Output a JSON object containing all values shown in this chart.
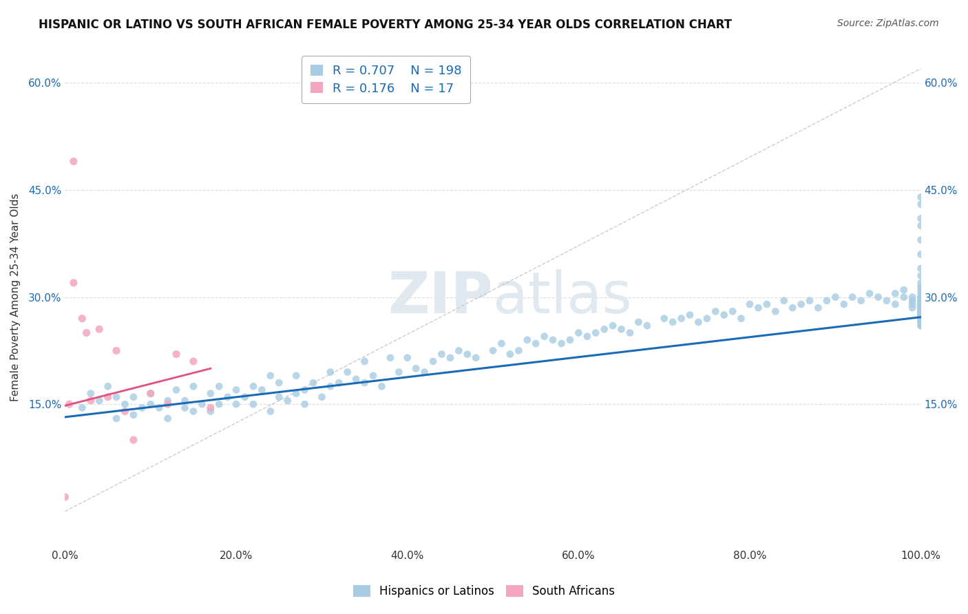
{
  "title": "HISPANIC OR LATINO VS SOUTH AFRICAN FEMALE POVERTY AMONG 25-34 YEAR OLDS CORRELATION CHART",
  "source": "Source: ZipAtlas.com",
  "ylabel": "Female Poverty Among 25-34 Year Olds",
  "xlim": [
    0,
    1.0
  ],
  "ylim": [
    -0.05,
    0.65
  ],
  "xticklabels": [
    "0.0%",
    "20.0%",
    "40.0%",
    "60.0%",
    "80.0%",
    "100.0%"
  ],
  "ytick_positions": [
    0.15,
    0.3,
    0.45,
    0.6
  ],
  "yticklabels": [
    "15.0%",
    "30.0%",
    "45.0%",
    "60.0%"
  ],
  "blue_color": "#a8cce4",
  "pink_color": "#f4a6be",
  "trend_blue": "#1a6bb5",
  "trend_pink": "#e05080",
  "ref_line_color": "#cccccc",
  "watermark_color": "#e0e8f0",
  "legend_R1": "0.707",
  "legend_N1": "198",
  "legend_R2": "0.176",
  "legend_N2": "17",
  "series1_label": "Hispanics or Latinos",
  "series2_label": "South Africans",
  "blue_trend_x": [
    0.0,
    1.0
  ],
  "blue_trend_y": [
    0.132,
    0.272
  ],
  "pink_trend_x": [
    0.0,
    0.17
  ],
  "pink_trend_y": [
    0.148,
    0.2
  ],
  "blue_scatter_x": [
    0.02,
    0.03,
    0.04,
    0.05,
    0.06,
    0.06,
    0.07,
    0.08,
    0.08,
    0.09,
    0.1,
    0.1,
    0.11,
    0.12,
    0.12,
    0.13,
    0.14,
    0.14,
    0.15,
    0.15,
    0.16,
    0.17,
    0.17,
    0.18,
    0.18,
    0.19,
    0.2,
    0.2,
    0.21,
    0.22,
    0.22,
    0.23,
    0.24,
    0.24,
    0.25,
    0.25,
    0.26,
    0.27,
    0.27,
    0.28,
    0.28,
    0.29,
    0.3,
    0.31,
    0.31,
    0.32,
    0.33,
    0.34,
    0.35,
    0.35,
    0.36,
    0.37,
    0.38,
    0.39,
    0.4,
    0.41,
    0.42,
    0.43,
    0.44,
    0.45,
    0.46,
    0.47,
    0.48,
    0.5,
    0.51,
    0.52,
    0.53,
    0.54,
    0.55,
    0.56,
    0.57,
    0.58,
    0.59,
    0.6,
    0.61,
    0.62,
    0.63,
    0.64,
    0.65,
    0.66,
    0.67,
    0.68,
    0.7,
    0.71,
    0.72,
    0.73,
    0.74,
    0.75,
    0.76,
    0.77,
    0.78,
    0.79,
    0.8,
    0.81,
    0.82,
    0.83,
    0.84,
    0.85,
    0.86,
    0.87,
    0.88,
    0.89,
    0.9,
    0.91,
    0.92,
    0.93,
    0.94,
    0.95,
    0.96,
    0.97,
    0.97,
    0.98,
    0.98,
    0.99,
    0.99,
    0.99,
    0.99,
    1.0,
    1.0,
    1.0,
    1.0,
    1.0,
    1.0,
    1.0,
    1.0,
    1.0,
    1.0,
    1.0,
    1.0,
    1.0,
    1.0,
    1.0,
    1.0,
    1.0,
    1.0,
    1.0,
    1.0,
    1.0,
    1.0,
    1.0,
    1.0,
    1.0,
    1.0,
    1.0,
    1.0,
    1.0,
    1.0,
    1.0,
    1.0,
    1.0,
    1.0,
    1.0,
    1.0,
    1.0,
    1.0,
    1.0,
    1.0,
    1.0,
    1.0,
    1.0,
    1.0,
    1.0,
    1.0,
    1.0,
    1.0,
    1.0,
    1.0,
    1.0,
    1.0,
    1.0,
    1.0,
    1.0,
    1.0,
    1.0,
    1.0,
    1.0,
    1.0,
    1.0,
    1.0,
    1.0,
    1.0,
    1.0,
    1.0,
    1.0,
    1.0,
    1.0,
    1.0,
    1.0,
    1.0,
    1.0,
    1.0,
    1.0,
    1.0,
    1.0,
    1.0,
    1.0,
    1.0,
    1.0
  ],
  "blue_scatter_y": [
    0.145,
    0.165,
    0.155,
    0.175,
    0.16,
    0.13,
    0.15,
    0.135,
    0.16,
    0.145,
    0.15,
    0.165,
    0.145,
    0.155,
    0.13,
    0.17,
    0.155,
    0.145,
    0.14,
    0.175,
    0.15,
    0.14,
    0.165,
    0.15,
    0.175,
    0.16,
    0.17,
    0.15,
    0.16,
    0.175,
    0.15,
    0.17,
    0.14,
    0.19,
    0.16,
    0.18,
    0.155,
    0.165,
    0.19,
    0.17,
    0.15,
    0.18,
    0.16,
    0.175,
    0.195,
    0.18,
    0.195,
    0.185,
    0.18,
    0.21,
    0.19,
    0.175,
    0.215,
    0.195,
    0.215,
    0.2,
    0.195,
    0.21,
    0.22,
    0.215,
    0.225,
    0.22,
    0.215,
    0.225,
    0.235,
    0.22,
    0.225,
    0.24,
    0.235,
    0.245,
    0.24,
    0.235,
    0.24,
    0.25,
    0.245,
    0.25,
    0.255,
    0.26,
    0.255,
    0.25,
    0.265,
    0.26,
    0.27,
    0.265,
    0.27,
    0.275,
    0.265,
    0.27,
    0.28,
    0.275,
    0.28,
    0.27,
    0.29,
    0.285,
    0.29,
    0.28,
    0.295,
    0.285,
    0.29,
    0.295,
    0.285,
    0.295,
    0.3,
    0.29,
    0.3,
    0.295,
    0.305,
    0.3,
    0.295,
    0.305,
    0.29,
    0.3,
    0.31,
    0.295,
    0.285,
    0.3,
    0.29,
    0.28,
    0.275,
    0.27,
    0.295,
    0.285,
    0.29,
    0.28,
    0.275,
    0.265,
    0.285,
    0.3,
    0.29,
    0.275,
    0.285,
    0.295,
    0.28,
    0.265,
    0.275,
    0.29,
    0.285,
    0.3,
    0.275,
    0.28,
    0.29,
    0.285,
    0.27,
    0.28,
    0.295,
    0.285,
    0.3,
    0.29,
    0.275,
    0.285,
    0.295,
    0.28,
    0.27,
    0.285,
    0.295,
    0.28,
    0.29,
    0.315,
    0.33,
    0.34,
    0.36,
    0.38,
    0.4,
    0.41,
    0.43,
    0.44,
    0.31,
    0.32,
    0.295,
    0.305,
    0.285,
    0.295,
    0.28,
    0.29,
    0.27,
    0.28,
    0.285,
    0.29,
    0.28,
    0.275,
    0.265,
    0.28,
    0.27,
    0.285,
    0.29,
    0.275,
    0.28,
    0.27,
    0.265,
    0.275,
    0.28,
    0.27,
    0.26,
    0.275,
    0.285,
    0.27,
    0.28,
    0.26
  ],
  "pink_scatter_x": [
    0.0,
    0.005,
    0.01,
    0.01,
    0.02,
    0.025,
    0.03,
    0.04,
    0.05,
    0.06,
    0.07,
    0.08,
    0.1,
    0.12,
    0.13,
    0.15,
    0.17
  ],
  "pink_scatter_y": [
    0.02,
    0.15,
    0.49,
    0.32,
    0.27,
    0.25,
    0.155,
    0.255,
    0.16,
    0.225,
    0.14,
    0.1,
    0.165,
    0.15,
    0.22,
    0.21,
    0.145
  ]
}
